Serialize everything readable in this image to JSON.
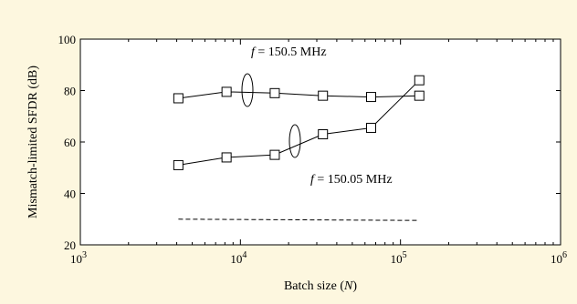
{
  "chart_data": {
    "type": "line",
    "title": "",
    "xlabel": "Batch size (N)",
    "xlabel_parts": {
      "prefix": "Batch size (",
      "var": "N",
      "suffix": ")"
    },
    "ylabel": "Mismatch-limited SFDR (dB)",
    "x_scale": "log",
    "xlim": [
      1000,
      1000000
    ],
    "ylim": [
      20,
      100
    ],
    "x_ticks": [
      {
        "value": 1000,
        "base": "10",
        "exp": "3"
      },
      {
        "value": 10000,
        "base": "10",
        "exp": "4"
      },
      {
        "value": 100000,
        "base": "10",
        "exp": "5"
      },
      {
        "value": 1000000,
        "base": "10",
        "exp": "6"
      }
    ],
    "y_ticks": [
      20,
      40,
      60,
      80,
      100
    ],
    "grid": false,
    "series": [
      {
        "name": "f = 150.5 MHz",
        "label_var": "f",
        "label_rest": " = 150.5 MHz",
        "marker": "square",
        "line": "solid",
        "x": [
          4096,
          8192,
          16384,
          32768,
          65536,
          131072
        ],
        "y": [
          77,
          79.5,
          79,
          78,
          77.5,
          78
        ]
      },
      {
        "name": "f = 150.05 MHz",
        "label_var": "f",
        "label_rest": " = 150.05 MHz",
        "marker": "square",
        "line": "solid",
        "x": [
          4096,
          8192,
          16384,
          32768,
          65536,
          131072
        ],
        "y": [
          51,
          54,
          55,
          63,
          65.5,
          84
        ]
      },
      {
        "name": "",
        "marker": "none",
        "line": "dashed",
        "x": [
          4096,
          131072
        ],
        "y": [
          30,
          29.5
        ]
      }
    ]
  }
}
